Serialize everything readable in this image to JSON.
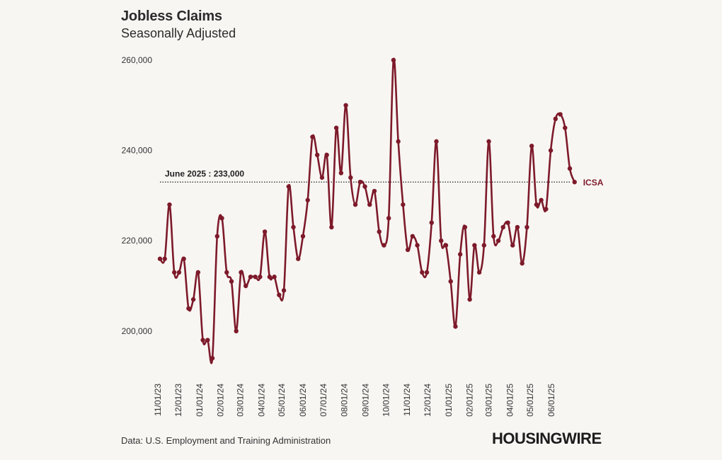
{
  "header": {
    "title": "Jobless Claims",
    "subtitle": "Seasonally Adjusted"
  },
  "footer": {
    "source": "Data: U.S. Employment and Training Administration",
    "logo": "HOUSINGWIRE"
  },
  "colors": {
    "series": "#7d1a2a",
    "background": "#f8f6f3",
    "text": "#2b2b2b"
  },
  "chart_data": {
    "type": "line",
    "title": "Jobless Claims",
    "subtitle": "Seasonally Adjusted",
    "xlabel": "",
    "ylabel": "",
    "ylim": [
      190000,
      260000
    ],
    "yticks": [
      200000,
      220000,
      240000,
      260000
    ],
    "ytick_labels": [
      "200,000",
      "220,000",
      "240,000",
      "260,000"
    ],
    "x_start": "2023-11-04",
    "x_end": "2025-06-28",
    "xticks": [
      "2023-11-01",
      "2023-12-01",
      "2024-01-01",
      "2024-02-01",
      "2024-03-01",
      "2024-04-01",
      "2024-05-01",
      "2024-06-01",
      "2024-07-01",
      "2024-08-01",
      "2024-09-01",
      "2024-10-01",
      "2024-11-01",
      "2024-12-01",
      "2025-01-01",
      "2025-02-01",
      "2025-03-01",
      "2025-04-01",
      "2025-05-01",
      "2025-06-01"
    ],
    "xtick_labels": [
      "11/01/23",
      "12/01/23",
      "01/01/24",
      "02/01/24",
      "03/01/24",
      "04/01/24",
      "05/01/24",
      "06/01/24",
      "07/01/24",
      "08/01/24",
      "09/01/24",
      "10/01/24",
      "11/01/24",
      "12/01/24",
      "01/01/25",
      "02/01/25",
      "03/01/25",
      "04/01/25",
      "05/01/25",
      "06/01/25"
    ],
    "grid": false,
    "series": [
      {
        "name": "ICSA",
        "values": [
          216000,
          216000,
          228000,
          213000,
          213000,
          216000,
          205000,
          207000,
          213000,
          198000,
          198000,
          194000,
          221000,
          225000,
          213000,
          211000,
          200000,
          213000,
          210000,
          212000,
          212000,
          212000,
          222000,
          212000,
          212000,
          208000,
          209000,
          232000,
          223000,
          216000,
          221000,
          229000,
          243000,
          239000,
          234000,
          239000,
          223000,
          245000,
          235000,
          250000,
          234000,
          228000,
          233000,
          232000,
          228000,
          231000,
          222000,
          219000,
          225000,
          260000,
          242000,
          228000,
          218000,
          221000,
          219000,
          213000,
          213000,
          224000,
          242000,
          220000,
          219000,
          211000,
          201000,
          217000,
          223000,
          207000,
          219000,
          213000,
          219000,
          242000,
          221000,
          220000,
          223000,
          224000,
          219000,
          223000,
          215000,
          223000,
          241000,
          228000,
          229000,
          227000,
          240000,
          247000,
          248000,
          245000,
          236000,
          233000
        ]
      }
    ],
    "reference_line": {
      "value": 233000,
      "label": "June 2025 : 233,000"
    }
  }
}
